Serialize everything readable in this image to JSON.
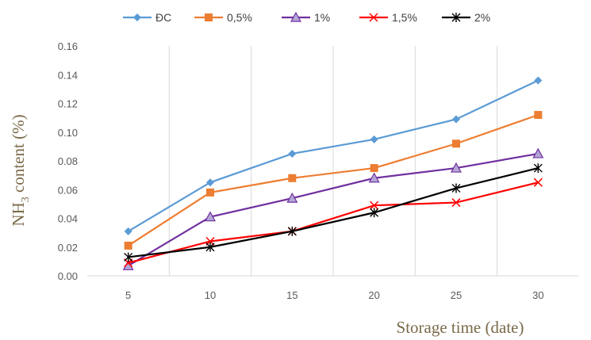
{
  "chart_data": {
    "type": "line",
    "title": "",
    "xlabel": "Storage time (date)",
    "ylabel": "NH3 content (%)",
    "ylabel_parts": {
      "pre": "NH",
      "sub": "3",
      "post": " content (%)"
    },
    "categories": [
      "5",
      "10",
      "15",
      "20",
      "25",
      "30"
    ],
    "yticks": [
      "0.00",
      "0.02",
      "0.04",
      "0.06",
      "0.08",
      "0.10",
      "0.12",
      "0.14",
      "0.16"
    ],
    "ylim": [
      0,
      0.16
    ],
    "grid": "vertical",
    "legend_position": "top",
    "series": [
      {
        "name": "ĐC",
        "color": "#5b9bd5",
        "marker": "diamond",
        "values": [
          0.031,
          0.065,
          0.085,
          0.095,
          0.109,
          0.136
        ]
      },
      {
        "name": "0,5%",
        "color": "#ed7d31",
        "marker": "square",
        "values": [
          0.021,
          0.058,
          0.068,
          0.075,
          0.092,
          0.112
        ]
      },
      {
        "name": "1%",
        "color": "#7030a0",
        "marker": "triangle",
        "values": [
          0.007,
          0.041,
          0.054,
          0.068,
          0.075,
          0.085
        ]
      },
      {
        "name": "1,5%",
        "color": "#ff0000",
        "marker": "x",
        "values": [
          0.009,
          0.024,
          0.031,
          0.049,
          0.051,
          0.065
        ]
      },
      {
        "name": "2%",
        "color": "#000000",
        "marker": "star",
        "values": [
          0.013,
          0.02,
          0.031,
          0.044,
          0.061,
          0.075
        ]
      }
    ]
  }
}
